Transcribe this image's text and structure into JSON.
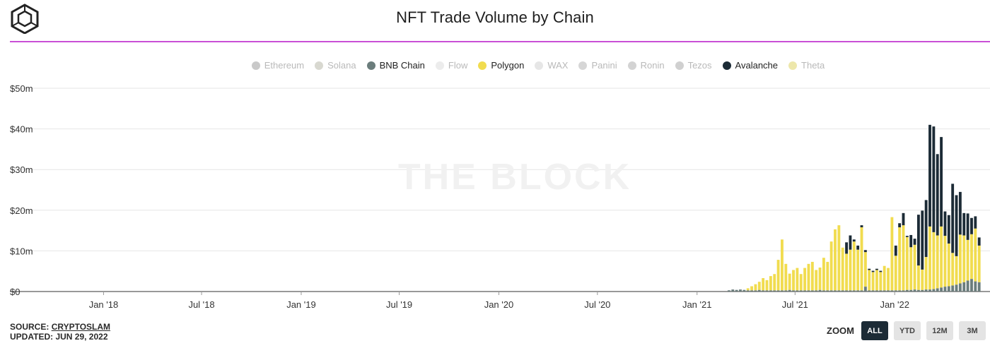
{
  "header": {
    "title": "NFT Trade Volume by Chain"
  },
  "watermark": "THE BLOCK",
  "legend": [
    {
      "name": "Ethereum",
      "color": "#c9c9c9",
      "active": false
    },
    {
      "name": "Solana",
      "color": "#d8d8d0",
      "active": false
    },
    {
      "name": "BNB Chain",
      "color": "#6b7d7c",
      "active": true
    },
    {
      "name": "Flow",
      "color": "#ececec",
      "active": false
    },
    {
      "name": "Polygon",
      "color": "#f1dc4f",
      "active": true
    },
    {
      "name": "WAX",
      "color": "#e6e6e6",
      "active": false
    },
    {
      "name": "Panini",
      "color": "#d6d6d6",
      "active": false
    },
    {
      "name": "Ronin",
      "color": "#d3d3d3",
      "active": false
    },
    {
      "name": "Tezos",
      "color": "#d0d0d0",
      "active": false
    },
    {
      "name": "Avalanche",
      "color": "#1c2b36",
      "active": true
    },
    {
      "name": "Theta",
      "color": "#ede7ab",
      "active": false
    }
  ],
  "chart_data": {
    "type": "bar",
    "stacked": true,
    "title": "NFT Trade Volume by Chain",
    "xlabel": "",
    "ylabel": "",
    "ylim": [
      0,
      50
    ],
    "y_unit": "$m",
    "y_ticks": [
      "$0",
      "$10m",
      "$20m",
      "$30m",
      "$40m",
      "$50m"
    ],
    "x_ticks": [
      "Jan '18",
      "Jul '18",
      "Jan '19",
      "Jul '19",
      "Jan '20",
      "Jul '20",
      "Jan '21",
      "Jul '21",
      "Jan '22"
    ],
    "x_range": [
      "2017-10-01",
      "2022-06-26"
    ],
    "grid": true,
    "legend_position": "top",
    "week_start": "2021-03-01",
    "series": [
      {
        "name": "BNB Chain",
        "color": "#6b7d7c",
        "values": [
          0.3,
          0.5,
          0.4,
          0.5,
          0.4,
          0.3,
          0.3,
          0.3,
          0.4,
          0.3,
          0.3,
          0.3,
          0.3,
          0.3,
          0.3,
          0.3,
          0.4,
          0.3,
          0.3,
          0.3,
          0.3,
          0.3,
          0.3,
          0.3,
          0.4,
          0.3,
          0.3,
          0.3,
          0.3,
          0.3,
          0.3,
          0.3,
          0.3,
          0.3,
          0.3,
          0.3,
          1.2,
          0.3,
          0.3,
          0.3,
          0.3,
          0.3,
          0.3,
          0.3,
          0.3,
          0.3,
          0.3,
          0.4,
          0.4,
          0.5,
          0.4,
          0.4,
          0.5,
          0.5,
          0.6,
          0.8,
          1.0,
          1.2,
          1.3,
          1.5,
          1.7,
          2.0,
          2.3,
          2.7,
          3.1,
          2.5,
          2.3
        ]
      },
      {
        "name": "Polygon",
        "color": "#f1dc4f",
        "values": [
          0,
          0,
          0,
          0,
          0,
          0.5,
          1,
          1.5,
          2,
          3,
          2.5,
          3.5,
          4,
          7.5,
          12.5,
          6.5,
          4,
          5,
          5.5,
          4,
          5.5,
          6.5,
          7,
          5,
          5.5,
          8,
          7,
          12,
          15,
          16,
          10.5,
          9,
          10,
          12,
          10,
          15.5,
          8.5,
          5,
          4.5,
          5,
          4.5,
          6,
          5.5,
          18,
          8.5,
          15.5,
          16,
          13,
          10.5,
          11,
          6,
          5,
          8,
          15.5,
          14,
          13,
          15,
          12.5,
          10.5,
          8,
          7,
          12,
          11.5,
          10,
          11,
          13,
          9
        ]
      },
      {
        "name": "Avalanche",
        "color": "#1c2b36",
        "values": [
          0,
          0,
          0,
          0,
          0,
          0,
          0,
          0,
          0,
          0,
          0,
          0,
          0,
          0,
          0,
          0,
          0,
          0,
          0,
          0,
          0,
          0,
          0,
          0,
          0,
          0,
          0,
          0,
          0,
          0,
          0,
          2.8,
          3.5,
          0.5,
          1,
          0.5,
          0.5,
          0.3,
          0.3,
          0.3,
          0.3,
          0,
          0,
          0,
          2.5,
          1,
          3,
          0.3,
          3,
          1.5,
          12.5,
          14.5,
          14,
          25,
          26,
          20,
          22,
          6,
          7,
          17,
          15,
          10.5,
          5.5,
          6.5,
          4,
          3,
          2
        ]
      }
    ]
  },
  "footer": {
    "source_label": "SOURCE:",
    "source_link": "CRYPTOSLAM",
    "updated": "UPDATED: JUN 29, 2022"
  },
  "zoom": {
    "label": "ZOOM",
    "buttons": [
      {
        "label": "ALL",
        "active": true
      },
      {
        "label": "YTD",
        "active": false
      },
      {
        "label": "12M",
        "active": false
      },
      {
        "label": "3M",
        "active": false
      }
    ]
  }
}
